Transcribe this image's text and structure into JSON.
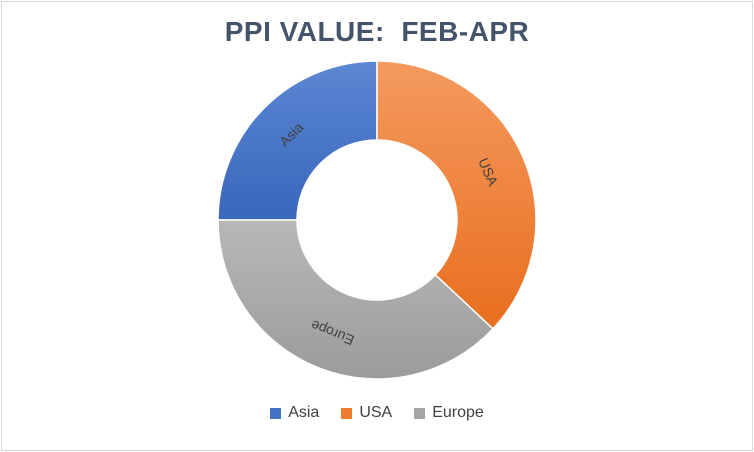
{
  "chart_data": {
    "type": "pie",
    "style": "donut",
    "title": "PPI VALUE:  FEB-APR",
    "categories": [
      "Asia",
      "USA",
      "Europe"
    ],
    "values": [
      25,
      37,
      38
    ],
    "colors": [
      "#4472c4",
      "#ed7d31",
      "#a5a5a5"
    ],
    "legend_position": "bottom",
    "data_labels": [
      "Asia",
      "USA",
      "Europe"
    ]
  }
}
